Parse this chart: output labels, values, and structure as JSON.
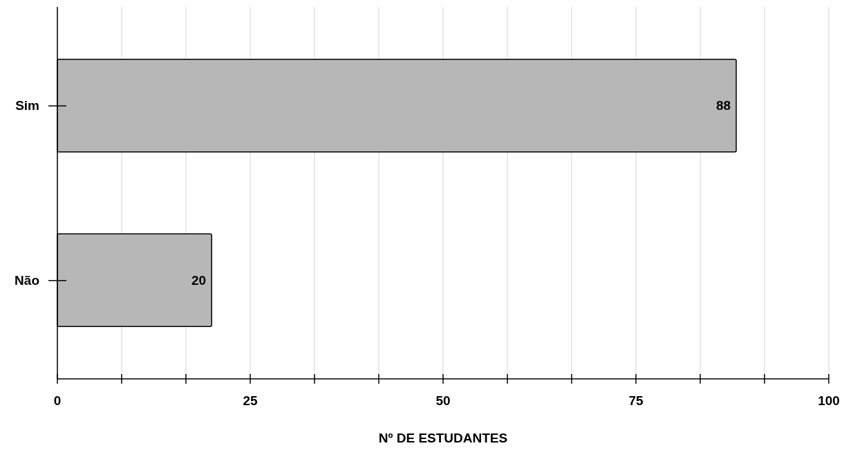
{
  "chart_data": {
    "type": "bar",
    "orientation": "horizontal",
    "xlabel": "Nº DE ESTUDANTES",
    "categories": [
      "Sim",
      "Não"
    ],
    "values": [
      88,
      20
    ],
    "color": "#b7b7b7",
    "data_labels": true,
    "xlim": [
      0,
      100
    ],
    "xticks": [
      0,
      {
        "value": 8.333,
        "label": null
      },
      {
        "value": 16.667,
        "label": null
      },
      25,
      {
        "value": 33.333,
        "label": null
      },
      {
        "value": 41.667,
        "label": null
      },
      50,
      {
        "value": 58.333,
        "label": null
      },
      {
        "value": 66.667,
        "label": null
      },
      75,
      {
        "value": 83.333,
        "label": null
      },
      {
        "value": 91.667,
        "label": null
      },
      100
    ],
    "grid": "x"
  }
}
